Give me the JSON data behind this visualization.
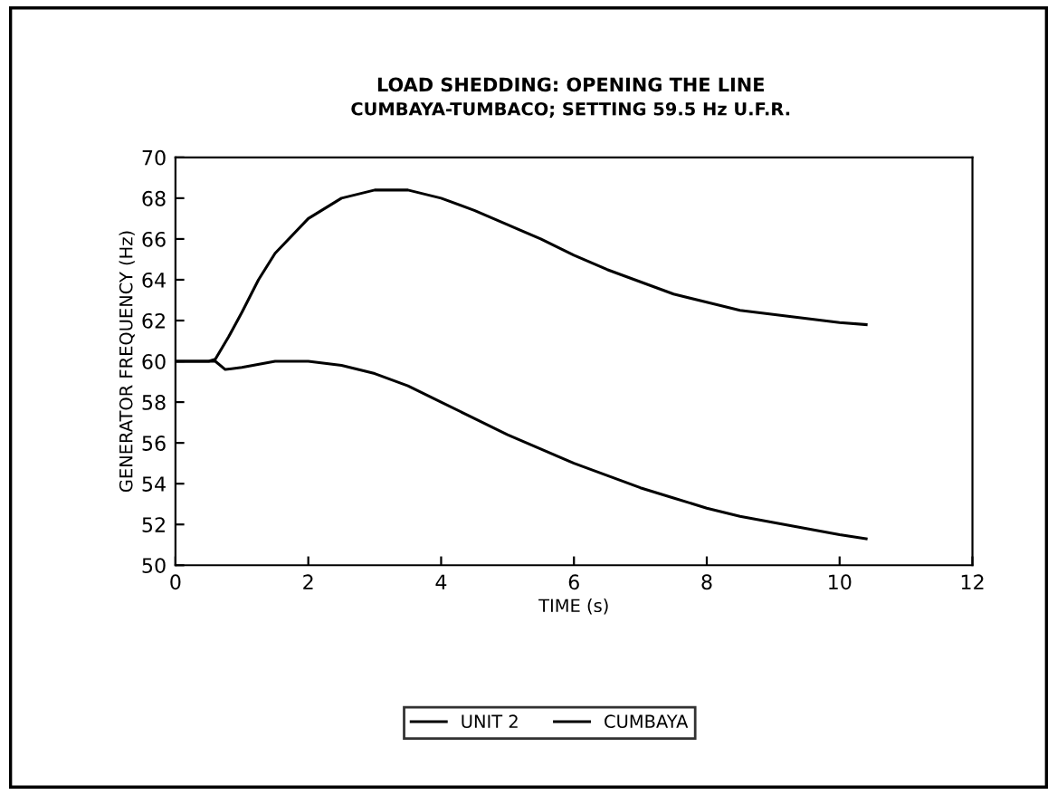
{
  "chart_data": {
    "type": "line",
    "title": "LOAD SHEDDING: OPENING THE LINE",
    "subtitle": "CUMBAYA-TUMBACO; SETTING 59.5 Hz U.F.R.",
    "xlabel": "TIME (s)",
    "ylabel": "GENERATOR FREQUENCY (Hz)",
    "xlim": [
      0,
      12
    ],
    "xticks": [
      0,
      2,
      4,
      6,
      8,
      10,
      12
    ],
    "ylim": [
      50,
      70
    ],
    "yticks": [
      50,
      52,
      54,
      56,
      58,
      60,
      62,
      64,
      66,
      68,
      70
    ],
    "grid": false,
    "legend": "bottom",
    "line_style": "solid",
    "series": [
      {
        "name": "UNIT 2",
        "color": "#000000",
        "x": [
          0,
          0.5,
          0.6,
          0.8,
          1.0,
          1.25,
          1.5,
          2.0,
          2.5,
          3.0,
          3.5,
          4.0,
          4.5,
          5.0,
          5.5,
          6.0,
          6.5,
          7.0,
          7.5,
          8.0,
          8.5,
          9.0,
          9.5,
          10.0,
          10.4
        ],
        "values": [
          60,
          60,
          60.1,
          61.2,
          62.4,
          64.0,
          65.3,
          67.0,
          68.0,
          68.4,
          68.4,
          68.0,
          67.4,
          66.7,
          66.0,
          65.2,
          64.5,
          63.9,
          63.3,
          62.9,
          62.5,
          62.3,
          62.1,
          61.9,
          61.8
        ]
      },
      {
        "name": "CUMBAYA",
        "color": "#000000",
        "x": [
          0,
          0.5,
          0.6,
          0.75,
          1.0,
          1.5,
          2.0,
          2.5,
          3.0,
          3.5,
          4.0,
          4.5,
          5.0,
          5.5,
          6.0,
          6.5,
          7.0,
          7.5,
          8.0,
          8.5,
          9.0,
          9.5,
          10.0,
          10.4
        ],
        "values": [
          60,
          60,
          60.0,
          59.6,
          59.7,
          60.0,
          60.0,
          59.8,
          59.4,
          58.8,
          58.0,
          57.2,
          56.4,
          55.7,
          55.0,
          54.4,
          53.8,
          53.3,
          52.8,
          52.4,
          52.1,
          51.8,
          51.5,
          51.3
        ]
      }
    ]
  }
}
